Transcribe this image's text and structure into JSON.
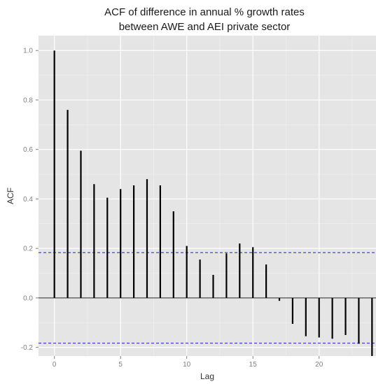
{
  "chart_data": {
    "type": "bar",
    "subtype": "acf-stem",
    "title_lines": [
      "ACF of difference in annual % growth rates",
      "between AWE and AEI private sector"
    ],
    "xlabel": "Lag",
    "ylabel": "ACF",
    "x_ticks": [
      "0",
      "5",
      "10",
      "15",
      "20"
    ],
    "y_ticks": [
      "1.0",
      "0.8",
      "0.6",
      "0.4",
      "0.2",
      "0.0",
      "-0.2"
    ],
    "xlim": [
      -1.2,
      24.3
    ],
    "ylim": [
      -0.235,
      1.06
    ],
    "lags": [
      0,
      1,
      2,
      3,
      4,
      5,
      6,
      7,
      8,
      9,
      10,
      11,
      12,
      13,
      14,
      15,
      16,
      17,
      18,
      19,
      20,
      21,
      22,
      23,
      24
    ],
    "acf": [
      1.0,
      0.76,
      0.595,
      0.46,
      0.405,
      0.44,
      0.455,
      0.48,
      0.455,
      0.35,
      0.21,
      0.155,
      0.093,
      0.18,
      0.22,
      0.205,
      0.135,
      -0.012,
      -0.105,
      -0.155,
      -0.16,
      -0.165,
      -0.15,
      -0.185,
      -0.235
    ],
    "confidence_bound": 0.183,
    "grid": true,
    "colors": {
      "panel_background": "#e5e5e5",
      "grid_major": "#ffffff",
      "grid_minor": "#f2f2f2",
      "stem": "#000000",
      "confidence_line": "#3333cc"
    }
  }
}
